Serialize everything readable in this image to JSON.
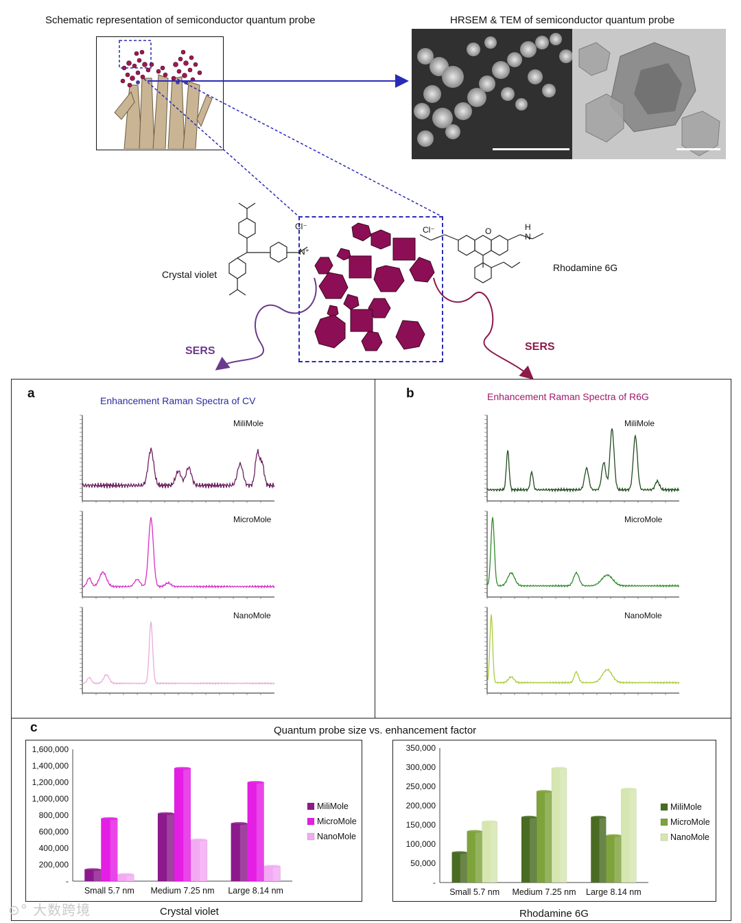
{
  "header": {
    "schematic_title": "Schematic representation of semiconductor quantum probe",
    "micrograph_title": "HRSEM  & TEM of semiconductor quantum probe"
  },
  "molecules": {
    "cv_label": "Crystal violet",
    "r6g_label": "Rhodamine 6G",
    "sers_left": "SERS",
    "sers_right": "SERS",
    "cl_left": "Cl⁻",
    "cl_right": "Cl⁻",
    "n_plus": "N⁺",
    "h_label": "H",
    "n_label": "N",
    "o_label": "O"
  },
  "panel_a": {
    "letter": "a",
    "title": "Enhancement Raman Spectra of CV",
    "spectra": [
      "MiliMole",
      "MicroMole",
      "NanoMole"
    ],
    "colors": [
      "#6b1f60",
      "#d62fc6",
      "#eaa9dc"
    ]
  },
  "panel_b": {
    "letter": "b",
    "title": "Enhancement Raman Spectra of R6G",
    "spectra": [
      "MiliMole",
      "MicroMole",
      "NanoMole"
    ],
    "colors": [
      "#1f4a1c",
      "#2f8a2a",
      "#a9cc3a"
    ]
  },
  "panel_c": {
    "letter": "c",
    "title": "Quantum probe size vs. enhancement factor"
  },
  "chart_data": [
    {
      "type": "bar",
      "title": "",
      "xlabel": "Crystal violet",
      "ylabel": "",
      "categories": [
        "Small 5.7 nm",
        "Medium 7.25 nm",
        "Large 8.14 nm"
      ],
      "series": [
        {
          "name": "MiliMole",
          "values": [
            140000,
            820000,
            700000
          ],
          "color": "#8c1a8c"
        },
        {
          "name": "MicroMole",
          "values": [
            760000,
            1370000,
            1200000
          ],
          "color": "#e41ee4"
        },
        {
          "name": "NanoMole",
          "values": [
            80000,
            500000,
            180000
          ],
          "color": "#f3aaf3"
        }
      ],
      "ylim": [
        0,
        1600000
      ],
      "yticks": [
        "-",
        "200,000",
        "400,000",
        "600,000",
        "800,000",
        "1,000,000",
        "1,200,000",
        "1,400,000",
        "1,600,000"
      ],
      "legend": "right"
    },
    {
      "type": "bar",
      "title": "",
      "xlabel": "Rhodamine 6G",
      "ylabel": "",
      "categories": [
        "Small 5.7 nm",
        "Medium 7.25 nm",
        "Large 8.14 nm"
      ],
      "series": [
        {
          "name": "MiliMole",
          "values": [
            78000,
            170000,
            170000
          ],
          "color": "#4a6b22"
        },
        {
          "name": "MicroMole",
          "values": [
            133000,
            237000,
            122000
          ],
          "color": "#7ea33b"
        },
        {
          "name": "NanoMole",
          "values": [
            158000,
            297000,
            243000
          ],
          "color": "#d6e6b0"
        }
      ],
      "ylim": [
        0,
        350000
      ],
      "yticks": [
        "-",
        "50,000",
        "100,000",
        "150,000",
        "200,000",
        "250,000",
        "300,000",
        "350,000"
      ],
      "legend": "right"
    }
  ]
}
